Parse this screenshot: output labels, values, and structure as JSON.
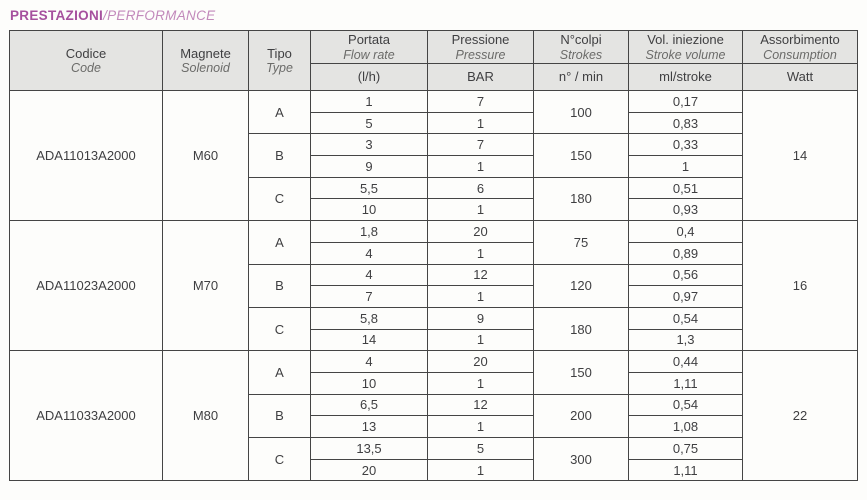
{
  "title": {
    "italian": "PRESTAZIONI",
    "separator": "/",
    "english": "PERFORMANCE"
  },
  "colors": {
    "title_primary": "#a6509e",
    "title_secondary": "#c289bb",
    "header_bg": "#e4e4e2",
    "border": "#454545",
    "text": "#3f3f41"
  },
  "table": {
    "headers": {
      "code": {
        "it": "Codice",
        "en": "Code"
      },
      "solenoid": {
        "it": "Magnete",
        "en": "Solenoid"
      },
      "type": {
        "it": "Tipo",
        "en": "Type"
      },
      "flow": {
        "it": "Portata",
        "en": "Flow rate",
        "unit": "(l/h)"
      },
      "pressure": {
        "it": "Pressione",
        "en": "Pressure",
        "unit": "BAR"
      },
      "strokes": {
        "it": "N°colpi",
        "en": "Strokes",
        "unit": "n° / min"
      },
      "volume": {
        "it": "Vol. iniezione",
        "en": "Stroke volume",
        "unit": "ml/stroke"
      },
      "consumption": {
        "it": "Assorbimento",
        "en": "Consumption",
        "unit": "Watt"
      }
    },
    "blocks": [
      {
        "code": "ADA11013A2000",
        "solenoid": "M60",
        "watt": "14",
        "types": [
          {
            "type": "A",
            "strokes": "100",
            "rows": [
              {
                "flow": "1",
                "pressure": "7",
                "volume": "0,17"
              },
              {
                "flow": "5",
                "pressure": "1",
                "volume": "0,83"
              }
            ]
          },
          {
            "type": "B",
            "strokes": "150",
            "rows": [
              {
                "flow": "3",
                "pressure": "7",
                "volume": "0,33"
              },
              {
                "flow": "9",
                "pressure": "1",
                "volume": "1"
              }
            ]
          },
          {
            "type": "C",
            "strokes": "180",
            "rows": [
              {
                "flow": "5,5",
                "pressure": "6",
                "volume": "0,51"
              },
              {
                "flow": "10",
                "pressure": "1",
                "volume": "0,93"
              }
            ]
          }
        ]
      },
      {
        "code": "ADA11023A2000",
        "solenoid": "M70",
        "watt": "16",
        "types": [
          {
            "type": "A",
            "strokes": "75",
            "rows": [
              {
                "flow": "1,8",
                "pressure": "20",
                "volume": "0,4"
              },
              {
                "flow": "4",
                "pressure": "1",
                "volume": "0,89"
              }
            ]
          },
          {
            "type": "B",
            "strokes": "120",
            "rows": [
              {
                "flow": "4",
                "pressure": "12",
                "volume": "0,56"
              },
              {
                "flow": "7",
                "pressure": "1",
                "volume": "0,97"
              }
            ]
          },
          {
            "type": "C",
            "strokes": "180",
            "rows": [
              {
                "flow": "5,8",
                "pressure": "9",
                "volume": "0,54"
              },
              {
                "flow": "14",
                "pressure": "1",
                "volume": "1,3"
              }
            ]
          }
        ]
      },
      {
        "code": "ADA11033A2000",
        "solenoid": "M80",
        "watt": "22",
        "types": [
          {
            "type": "A",
            "strokes": "150",
            "rows": [
              {
                "flow": "4",
                "pressure": "20",
                "volume": "0,44"
              },
              {
                "flow": "10",
                "pressure": "1",
                "volume": "1,11"
              }
            ]
          },
          {
            "type": "B",
            "strokes": "200",
            "rows": [
              {
                "flow": "6,5",
                "pressure": "12",
                "volume": "0,54"
              },
              {
                "flow": "13",
                "pressure": "1",
                "volume": "1,08"
              }
            ]
          },
          {
            "type": "C",
            "strokes": "300",
            "rows": [
              {
                "flow": "13,5",
                "pressure": "5",
                "volume": "0,75"
              },
              {
                "flow": "20",
                "pressure": "1",
                "volume": "1,11"
              }
            ]
          }
        ]
      }
    ]
  }
}
